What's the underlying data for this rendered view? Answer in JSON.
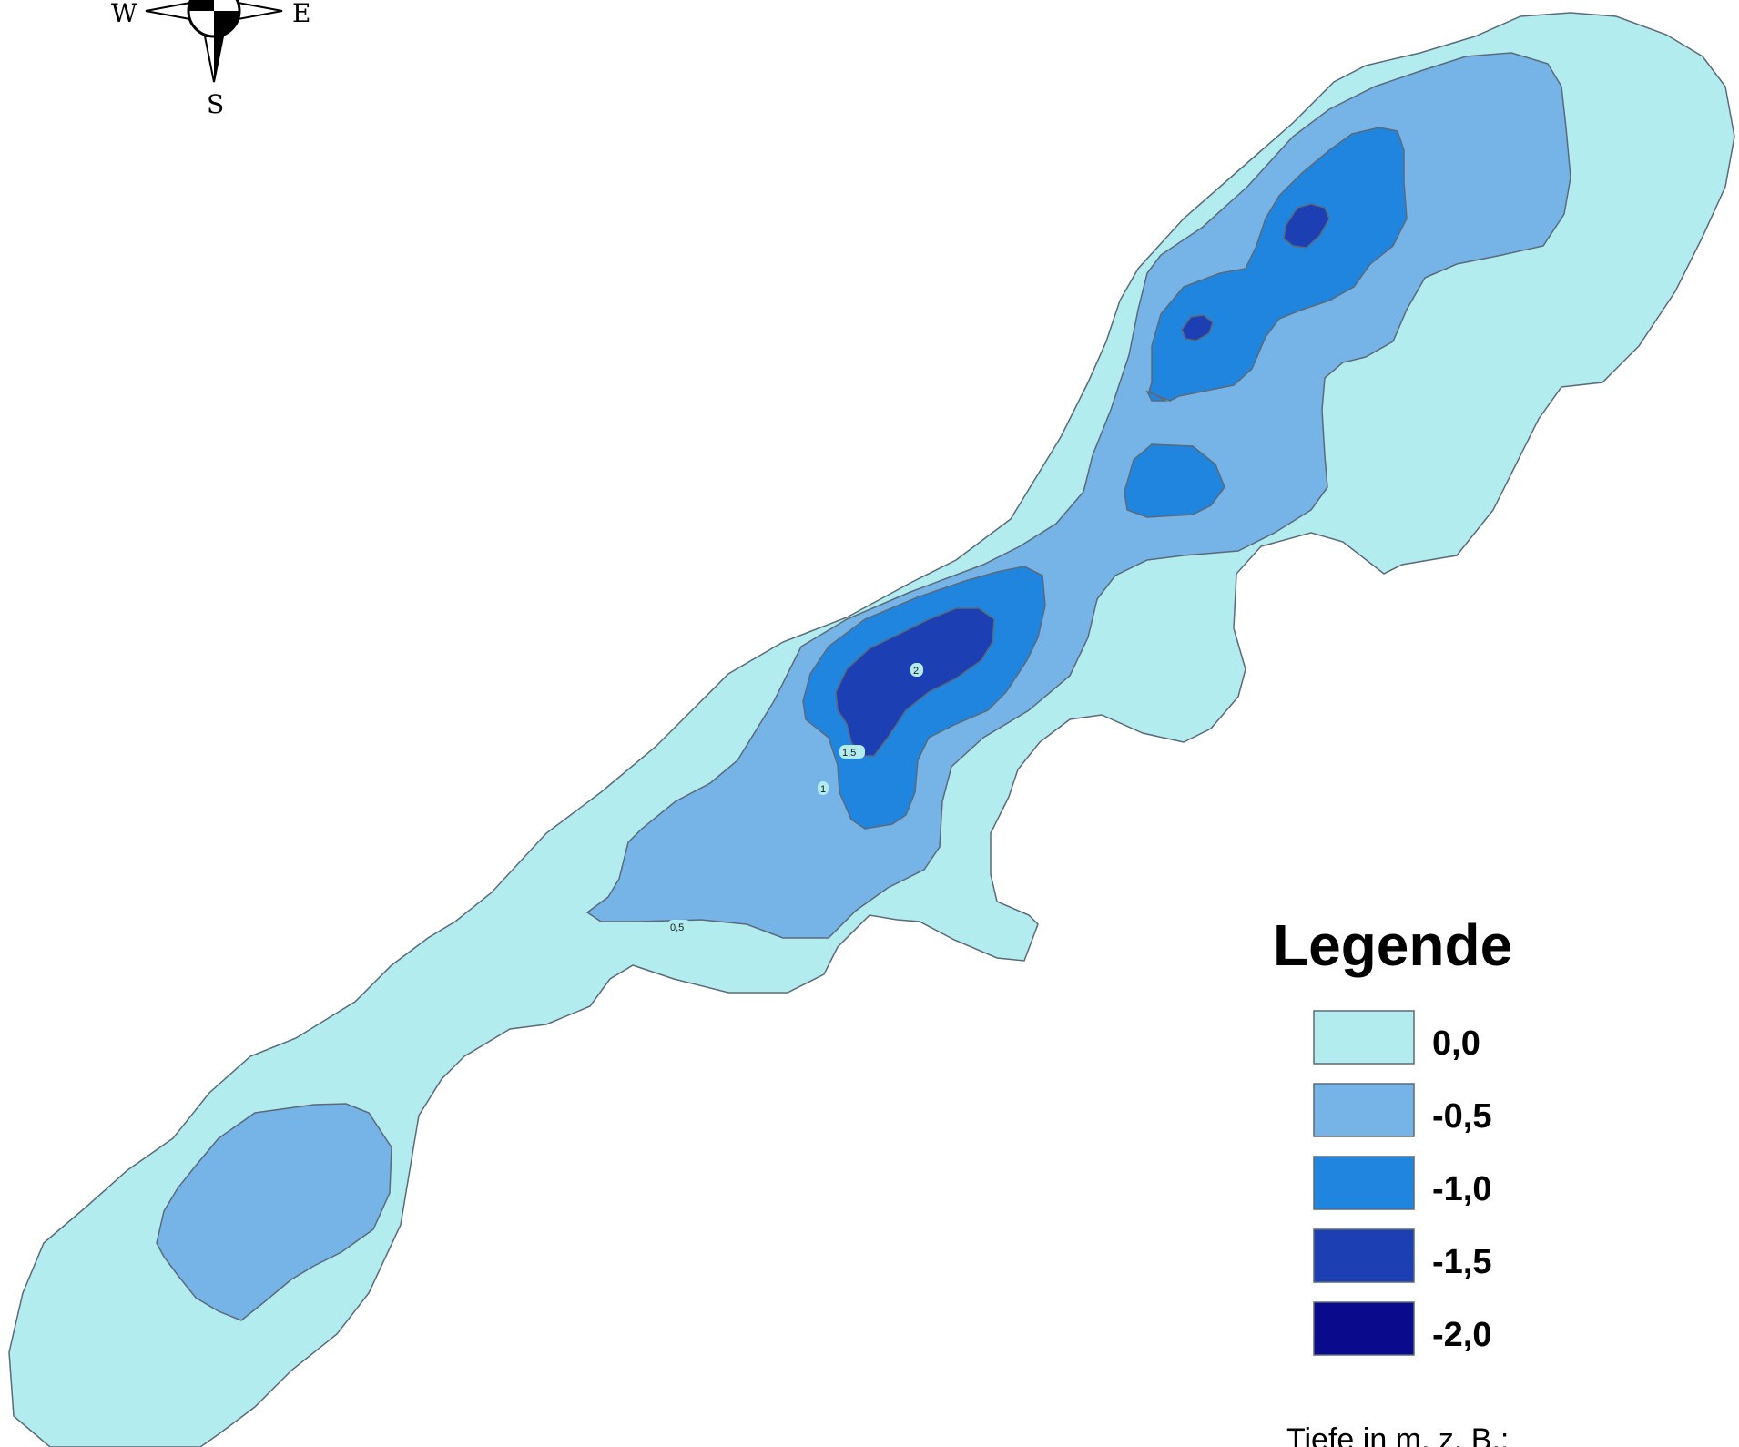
{
  "compass": {
    "west": "W",
    "east": "E",
    "south": "S"
  },
  "contour_labels": [
    "2",
    "1,5",
    "1",
    "0,5"
  ],
  "legend": {
    "title": "Legende",
    "items": [
      {
        "label": "0,0",
        "color": "#b3ecee"
      },
      {
        "label": "-0,5",
        "color": "#76b3e6"
      },
      {
        "label": "-1,0",
        "color": "#2085df"
      },
      {
        "label": "-1,5",
        "color": "#1c40b4"
      },
      {
        "label": "-2,0",
        "color": "#0a0a8c"
      }
    ],
    "note": "Tiefe in m, z. B.:"
  },
  "colors": {
    "outline": "#5a6a7a",
    "background": "#ffffff"
  }
}
